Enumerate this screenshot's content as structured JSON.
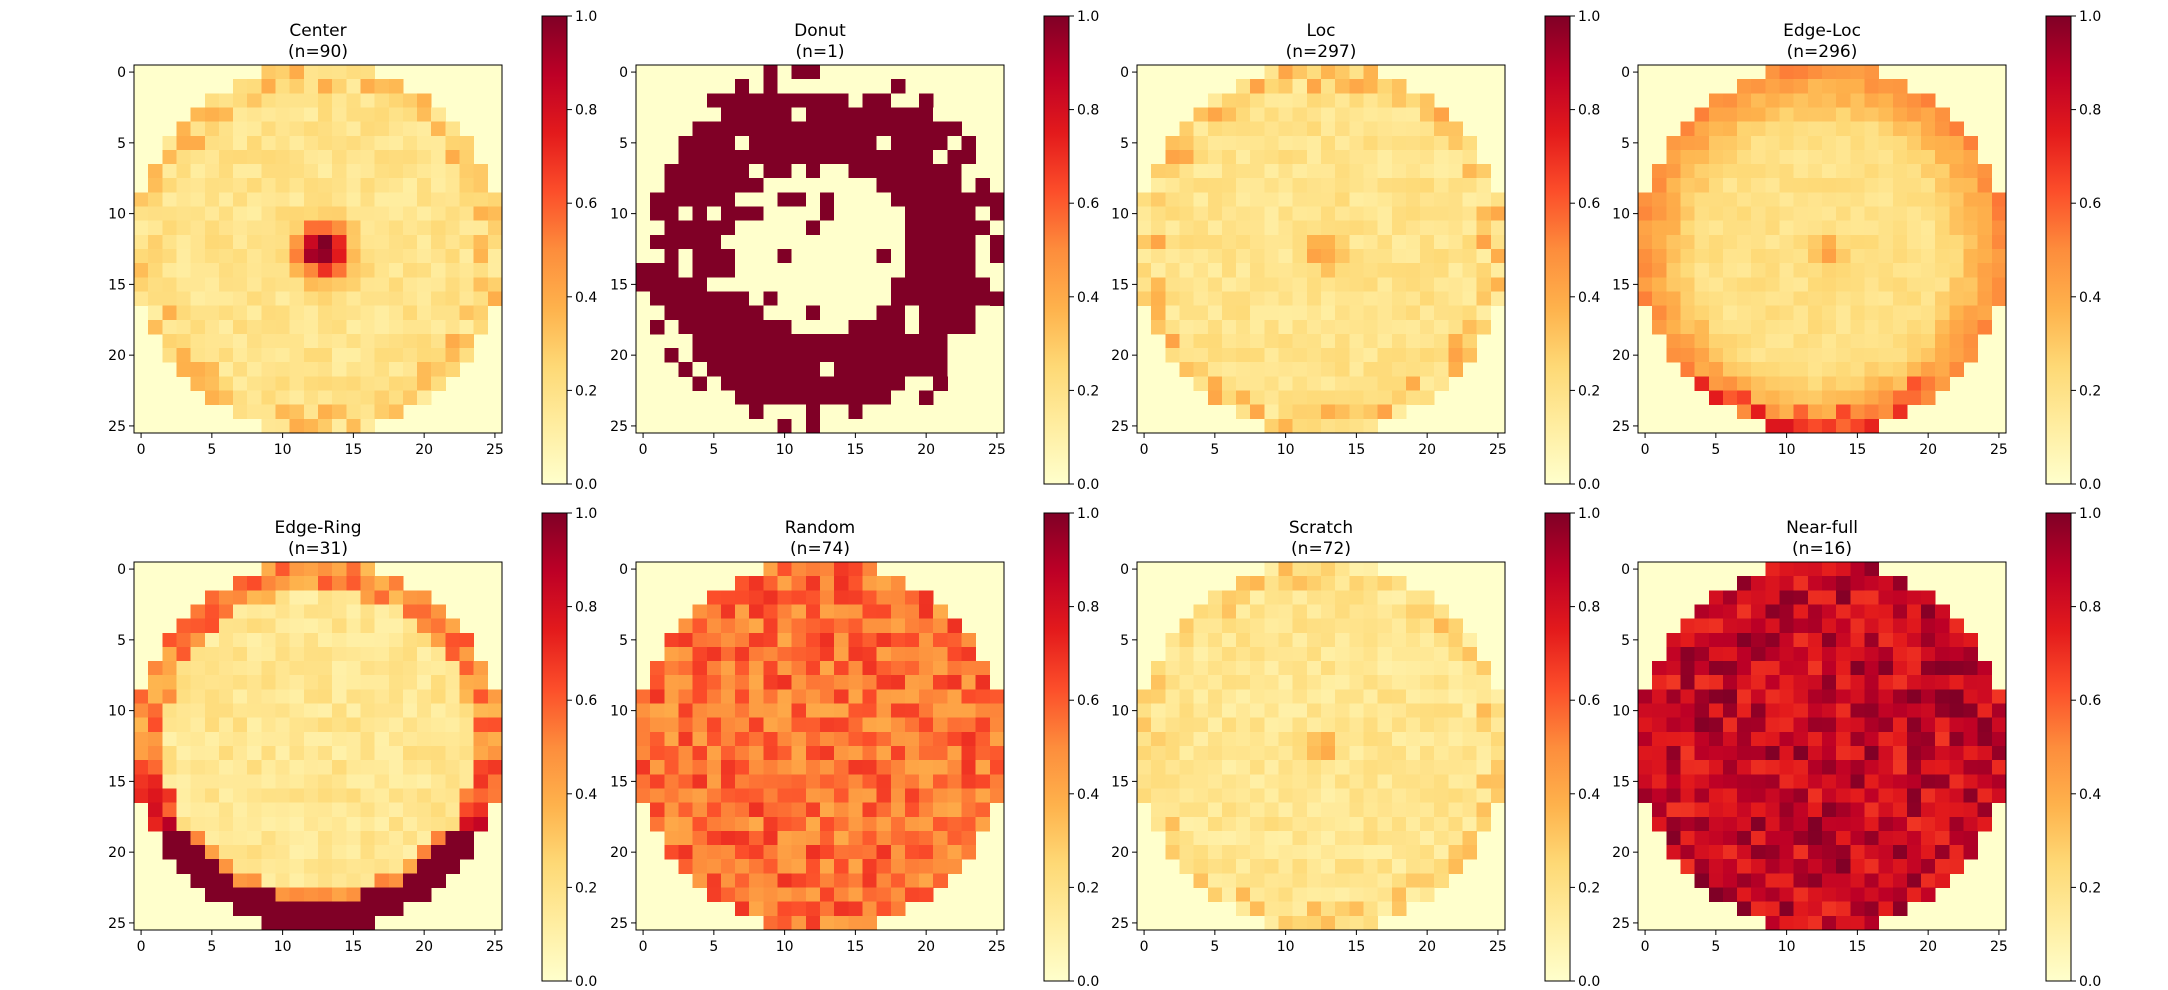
{
  "chart_data": {
    "type": "heatmap",
    "layout": "grid 2 rows x 4 columns",
    "grid_size": 26,
    "colormap": "YlOrRd",
    "color_range": [
      0,
      1
    ],
    "colorbar_ticks": [
      "0.0",
      "0.2",
      "0.4",
      "0.6",
      "0.8",
      "1.0"
    ],
    "x_ticks": [
      "0",
      "5",
      "10",
      "15",
      "20",
      "25"
    ],
    "y_ticks": [
      "0",
      "5",
      "10",
      "15",
      "20",
      "25"
    ],
    "panels": [
      {
        "key": "center",
        "title": "Center",
        "count": "(n=90)",
        "pattern": "center"
      },
      {
        "key": "donut",
        "title": "Donut",
        "count": "(n=1)",
        "pattern": "donut"
      },
      {
        "key": "loc",
        "title": "Loc",
        "count": "(n=297)",
        "pattern": "loc"
      },
      {
        "key": "edge-loc",
        "title": "Edge-Loc",
        "count": "(n=296)",
        "pattern": "edge-loc"
      },
      {
        "key": "edge-ring",
        "title": "Edge-Ring",
        "count": "(n=31)",
        "pattern": "edge-ring"
      },
      {
        "key": "random",
        "title": "Random",
        "count": "(n=74)",
        "pattern": "random"
      },
      {
        "key": "scratch",
        "title": "Scratch",
        "count": "(n=72)",
        "pattern": "scratch"
      },
      {
        "key": "near-full",
        "title": "Near-full",
        "count": "(n=16)",
        "pattern": "near-full"
      }
    ]
  }
}
